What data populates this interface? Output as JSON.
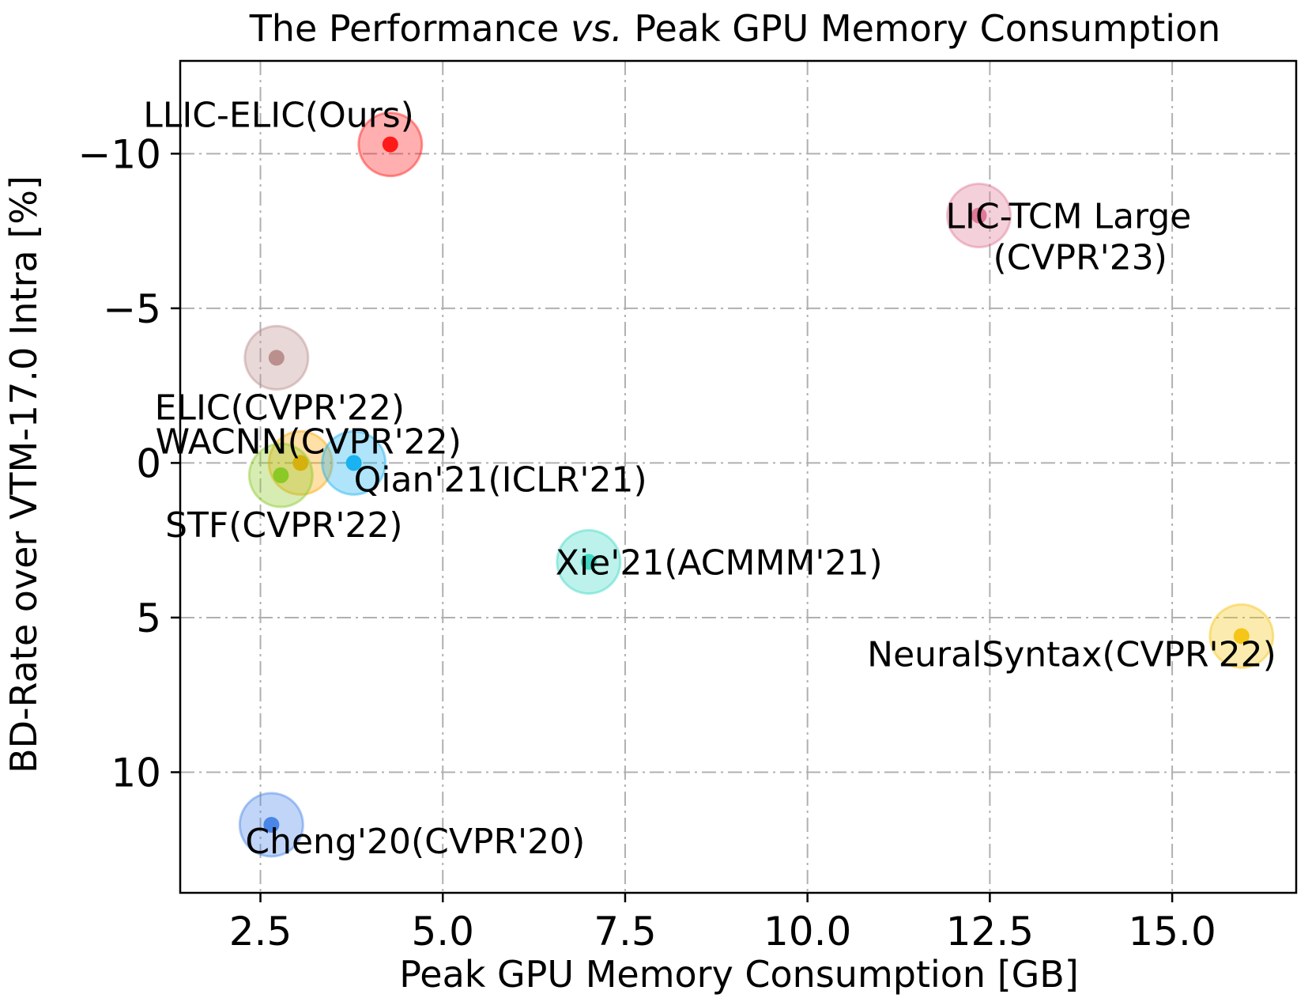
{
  "chart_data": {
    "type": "scatter",
    "title": "The Performance vs. Peak GPU Memory Consumption",
    "title_parts": {
      "before": "The Performance ",
      "italic": "vs.",
      "after": "  Peak GPU Memory Consumption"
    },
    "xlabel": "Peak GPU Memory Consumption [GB]",
    "ylabel": "BD-Rate over VTM-17.0 Intra [%]",
    "xlim": [
      1.4,
      16.7
    ],
    "ylim": [
      13.9,
      -13.0
    ],
    "y_inverted": true,
    "grid": true,
    "x_ticks": [
      {
        "value": 2.5,
        "label": "2.5"
      },
      {
        "value": 5.0,
        "label": "5.0"
      },
      {
        "value": 7.5,
        "label": "7.5"
      },
      {
        "value": 10.0,
        "label": "10.0"
      },
      {
        "value": 12.5,
        "label": "12.5"
      },
      {
        "value": 15.0,
        "label": "15.0"
      }
    ],
    "y_ticks": [
      {
        "value": -10,
        "label": "−10"
      },
      {
        "value": -5,
        "label": "−5"
      },
      {
        "value": 0,
        "label": "0"
      },
      {
        "value": 5,
        "label": "5"
      },
      {
        "value": 10,
        "label": "10"
      }
    ],
    "points": [
      {
        "name": "LLIC-ELIC(Ours)",
        "label_lines": [
          "LLIC-ELIC(Ours)"
        ],
        "x": 4.28,
        "y": -10.3,
        "color": "#ff1a1a",
        "label_anchor": "above-left"
      },
      {
        "name": "LIC-TCM Large (CVPR'23)",
        "label_lines": [
          "LIC-TCM Large",
          "(CVPR'23)"
        ],
        "x": 12.35,
        "y": -8.0,
        "color": "#e07a96",
        "label_anchor": "right"
      },
      {
        "name": "ELIC(CVPR'22)",
        "label_lines": [
          "ELIC(CVPR'22)"
        ],
        "x": 2.72,
        "y": -3.4,
        "color": "#bc8f8f",
        "label_anchor": "below"
      },
      {
        "name": "WACNN(CVPR'22)",
        "label_lines": [
          "WACNN(CVPR'22)"
        ],
        "x": 3.05,
        "y": 0.0,
        "color": "#ffa500",
        "label_anchor": "above"
      },
      {
        "name": "Qian'21(ICLR'21)",
        "label_lines": [
          "Qian'21(ICLR'21)"
        ],
        "x": 3.78,
        "y": 0.0,
        "color": "#1ab2f0",
        "label_anchor": "below-right"
      },
      {
        "name": "STF(CVPR'22)",
        "label_lines": [
          "STF(CVPR'22)"
        ],
        "x": 2.78,
        "y": 0.4,
        "color": "#8ac926",
        "label_anchor": "below"
      },
      {
        "name": "Xie'21(ACMMM'21)",
        "label_lines": [
          "Xie'21(ACMMM'21)"
        ],
        "x": 7.0,
        "y": 3.2,
        "color": "#3fd9c5",
        "label_anchor": "right"
      },
      {
        "name": "NeuralSyntax(CVPR'22)",
        "label_lines": [
          "NeuralSyntax(CVPR'22)"
        ],
        "x": 15.95,
        "y": 5.6,
        "color": "#f5c518",
        "label_anchor": "below-left"
      },
      {
        "name": "Cheng'20(CVPR'20)",
        "label_lines": [
          "Cheng'20(CVPR'20)"
        ],
        "x": 2.65,
        "y": 11.7,
        "color": "#4a86e8",
        "label_anchor": "below-right"
      }
    ]
  }
}
